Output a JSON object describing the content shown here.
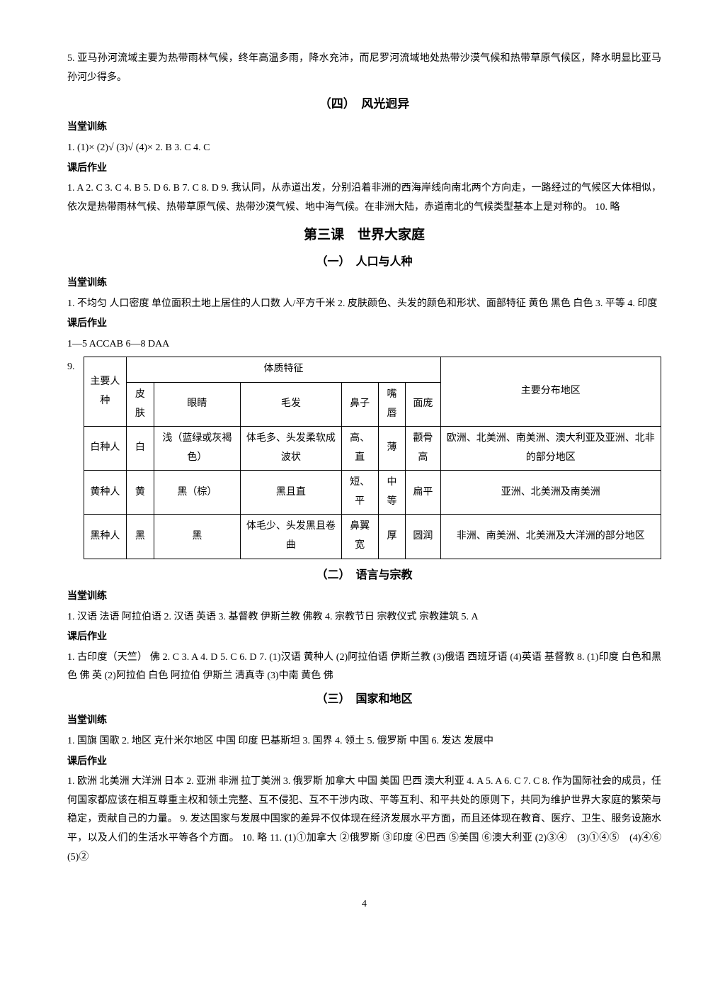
{
  "top_para": "5. 亚马孙河流域主要为热带雨林气候，终年高温多雨，降水充沛，而尼罗河流域地处热带沙漠气候和热带草原气候区，降水明显比亚马孙河少得多。",
  "sec4": {
    "title": "（四）　风光迥异",
    "cl_label": "当堂训练",
    "cl_text": "1. (1)× (2)√ (3)√ (4)× 2. B 3. C 4. C",
    "hw_label": "课后作业",
    "hw_text": "1. A 2. C 3. C 4. B 5. D 6. B 7. C 8. D 9. 我认同，从赤道出发，分别沿着非洲的西海岸线向南北两个方向走，一路经过的气候区大体相似，依次是热带雨林气候、热带草原气候、热带沙漠气候、地中海气候。在非洲大陆，赤道南北的气候类型基本上是对称的。 10. 略"
  },
  "lesson3": {
    "title": "第三课　世界大家庭",
    "part1": {
      "title": "（一）　人口与人种",
      "cl_label": "当堂训练",
      "cl_text": "1. 不均匀 人口密度 单位面积土地上居住的人口数 人/平方千米 2. 皮肤颜色、头发的颜色和形状、面部特征 黄色 黑色 白色 3. 平等 4. 印度",
      "hw_label": "课后作业",
      "hw_text1": "1—5 ACCAB 6—8 DAA",
      "table_num": "9.",
      "table": {
        "h1": "主要人种",
        "h2": "体质特征",
        "h3": "主要分布地区",
        "cols": [
          "皮肤",
          "眼睛",
          "毛发",
          "鼻子",
          "嘴唇",
          "面庞"
        ],
        "rows": [
          [
            "白种人",
            "白",
            "浅（蓝绿或灰褐色）",
            "体毛多、头发柔软成波状",
            "高、直",
            "薄",
            "颧骨高",
            "欧洲、北美洲、南美洲、澳大利亚及亚洲、北非的部分地区"
          ],
          [
            "黄种人",
            "黄",
            "黑（棕）",
            "黑且直",
            "短、平",
            "中等",
            "扁平",
            "亚洲、北美洲及南美洲"
          ],
          [
            "黑种人",
            "黑",
            "黑",
            "体毛少、头发黑且卷曲",
            "鼻翼宽",
            "厚",
            "圆润",
            "非洲、南美洲、北美洲及大洋洲的部分地区"
          ]
        ]
      }
    },
    "part2": {
      "title": "（二）　语言与宗教",
      "cl_label": "当堂训练",
      "cl_text": "1. 汉语 法语 阿拉伯语 2. 汉语 英语 3. 基督教 伊斯兰教 佛教 4. 宗教节日 宗教仪式 宗教建筑 5. A",
      "hw_label": "课后作业",
      "hw_text": "1. 古印度（天竺） 佛 2. C 3. A 4. D 5. C 6. D 7. (1)汉语 黄种人 (2)阿拉伯语 伊斯兰教 (3)俄语 西班牙语 (4)英语 基督教 8. (1)印度 白色和黑色 佛 英 (2)阿拉伯 白色 阿拉伯 伊斯兰 清真寺 (3)中南 黄色 佛"
    },
    "part3": {
      "title": "（三）　国家和地区",
      "cl_label": "当堂训练",
      "cl_text": "1. 国旗 国歌 2. 地区 克什米尔地区 中国 印度 巴基斯坦 3. 国界 4. 领土 5. 俄罗斯 中国 6. 发达 发展中",
      "hw_label": "课后作业",
      "hw_text": "1. 欧洲 北美洲 大洋洲 日本 2. 亚洲 非洲 拉丁美洲 3. 俄罗斯 加拿大 中国 美国 巴西 澳大利亚 4. A 5. A 6. C 7. C 8. 作为国际社会的成员，任何国家都应该在相互尊重主权和领土完整、互不侵犯、互不干涉内政、平等互利、和平共处的原则下，共同为维护世界大家庭的繁荣与稳定，贡献自己的力量。 9. 发达国家与发展中国家的差异不仅体现在经济发展水平方面，而且还体现在教育、医疗、卫生、服务设施水平，以及人们的生活水平等各个方面。 10. 略 11. (1)①加拿大 ②俄罗斯 ③印度 ④巴西 ⑤美国 ⑥澳大利亚 (2)③④　(3)①④⑤　(4)④⑥　(5)②"
    }
  },
  "page_number": "4"
}
